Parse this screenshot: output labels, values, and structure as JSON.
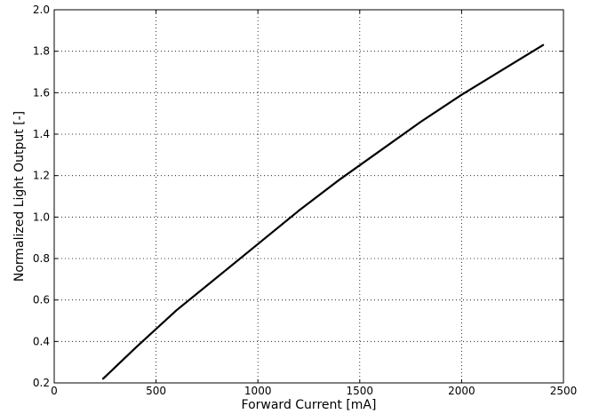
{
  "chart_data": {
    "type": "line",
    "title": "",
    "xlabel": "Forward Current [mA]",
    "ylabel": "Normalized Light Output [-]",
    "xlim": [
      0,
      2500
    ],
    "ylim": [
      0.2,
      2.0
    ],
    "grid": true,
    "xticks": [
      0,
      500,
      1000,
      1500,
      2000,
      2500
    ],
    "xtick_labels": [
      "0",
      "500",
      "1000",
      "1500",
      "2000",
      "2500"
    ],
    "yticks": [
      0.2,
      0.4,
      0.6,
      0.8,
      1.0,
      1.2,
      1.4,
      1.6,
      1.8,
      2.0
    ],
    "ytick_labels": [
      "0.2",
      "0.4",
      "0.6",
      "0.8",
      "1.0",
      "1.2",
      "1.4",
      "1.6",
      "1.8",
      "2.0"
    ],
    "series": [
      {
        "color": "#000000",
        "x": [
          240,
          400,
          600,
          800,
          1000,
          1200,
          1400,
          1600,
          1800,
          2000,
          2200,
          2400
        ],
        "y": [
          0.22,
          0.37,
          0.55,
          0.71,
          0.87,
          1.03,
          1.18,
          1.32,
          1.46,
          1.59,
          1.71,
          1.83
        ]
      }
    ]
  }
}
